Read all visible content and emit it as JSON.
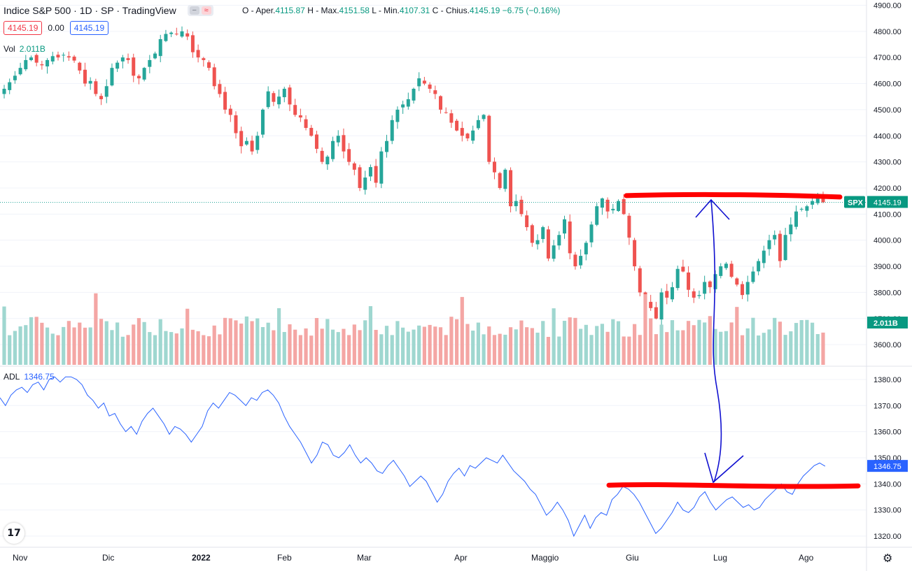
{
  "header": {
    "symbol": "Indice S&P 500 · 1D · SP · TradingView",
    "ohlc_o_label": "O - Aper.",
    "ohlc_o": "4115.87",
    "ohlc_h_label": "H - Max.",
    "ohlc_h": "4151.58",
    "ohlc_l_label": "L - Min.",
    "ohlc_l": "4107.31",
    "ohlc_c_label": "C - Chius.",
    "ohlc_c": "4145.19",
    "ohlc_change": "−6.75 (−0.16%)",
    "bid": "4145.19",
    "spread": "0.00",
    "ask": "4145.19",
    "vol_label": "Vol",
    "vol_value": "2.011B",
    "adl_label": "ADL",
    "adl_value": "1346.75"
  },
  "icons": {
    "logo": "tradingview-logo-icon",
    "settings": "gear-icon",
    "minus": "minus-icon",
    "wave": "wave-icon"
  },
  "colors": {
    "up": "#26a69a",
    "down": "#ef5350",
    "vol_up": "#9fd7d0",
    "vol_down": "#f4a6a4",
    "adl_line": "#2962ff",
    "annotation_red": "#ff0000",
    "annotation_blue": "#1010d0",
    "last_price_tag": "#089981",
    "adl_tag": "#2962ff"
  },
  "chart_data": [
    {
      "type": "candlestick",
      "title": "Indice S&P 500",
      "ylim": [
        3520,
        4920
      ],
      "y_ticks": [
        "4900.00",
        "4800.00",
        "4700.00",
        "4600.00",
        "4500.00",
        "4400.00",
        "4300.00",
        "4200.00",
        "4100.00",
        "4000.00",
        "3900.00",
        "3800.00",
        "3700.00",
        "3600.00"
      ],
      "last_price": 4145.19,
      "last_price_label": "SPX",
      "last_price_text": "4145.19",
      "volume_label": "2.011B",
      "x_labels": [
        "Nov",
        "Dic",
        "2022",
        "Feb",
        "Mar",
        "Apr",
        "Maggio",
        "Giu",
        "Lug",
        "Ago"
      ],
      "close": [
        4580,
        4605,
        4630,
        4660,
        4690,
        4700,
        4680,
        4670,
        4690,
        4705,
        4700,
        4710,
        4700,
        4688,
        4650,
        4600,
        4610,
        4560,
        4540,
        4590,
        4660,
        4680,
        4700,
        4690,
        4630,
        4620,
        4660,
        4690,
        4715,
        4770,
        4790,
        4795,
        4790,
        4800,
        4780,
        4720,
        4700,
        4690,
        4660,
        4590,
        4560,
        4500,
        4480,
        4410,
        4360,
        4380,
        4340,
        4400,
        4500,
        4570,
        4530,
        4550,
        4580,
        4520,
        4480,
        4470,
        4430,
        4400,
        4350,
        4300,
        4320,
        4380,
        4400,
        4340,
        4300,
        4270,
        4200,
        4240,
        4280,
        4220,
        4340,
        4380,
        4460,
        4500,
        4520,
        4540,
        4580,
        4620,
        4600,
        4580,
        4560,
        4500,
        4490,
        4450,
        4420,
        4400,
        4390,
        4420,
        4460,
        4480,
        4300,
        4260,
        4200,
        4270,
        4130,
        4150,
        4100,
        4050,
        3990,
        4000,
        4050,
        3930,
        3980,
        4020,
        4080,
        3950,
        3900,
        3940,
        3990,
        4060,
        4130,
        4160,
        4110,
        4120,
        4150,
        4100,
        4010,
        3900,
        3800,
        3760,
        3740,
        3700,
        3800,
        3780,
        3820,
        3890,
        3880,
        3810,
        3780,
        3790,
        3840,
        3820,
        3870,
        3900,
        3910,
        3860,
        3830,
        3790,
        3840,
        3880,
        3920,
        3960,
        4000,
        4020,
        3920,
        4020,
        4060,
        4110,
        4120,
        4130,
        4150,
        4160,
        4145
      ]
    },
    {
      "type": "line",
      "title": "ADL",
      "ylim": [
        1316,
        1384
      ],
      "y_ticks": [
        "1380.00",
        "1370.00",
        "1360.00",
        "1350.00",
        "1340.00",
        "1330.00",
        "1320.00"
      ],
      "last_value": 1346.75,
      "last_value_text": "1346.75",
      "values": [
        1373,
        1370,
        1374,
        1376,
        1377,
        1375,
        1378,
        1379,
        1376,
        1380,
        1381,
        1379,
        1381,
        1381,
        1380,
        1378,
        1374,
        1372,
        1369,
        1371,
        1366,
        1367,
        1363,
        1360,
        1362,
        1359,
        1364,
        1367,
        1369,
        1366,
        1363,
        1359,
        1362,
        1361,
        1359,
        1356,
        1359,
        1362,
        1368,
        1371,
        1369,
        1372,
        1375,
        1374,
        1372,
        1370,
        1373,
        1372,
        1375,
        1376,
        1374,
        1371,
        1366,
        1362,
        1359,
        1356,
        1352,
        1348,
        1351,
        1356,
        1355,
        1351,
        1350,
        1352,
        1355,
        1351,
        1348,
        1350,
        1348,
        1345,
        1344,
        1347,
        1349,
        1346,
        1343,
        1339,
        1341,
        1343,
        1341,
        1337,
        1333,
        1336,
        1341,
        1344,
        1346,
        1343,
        1347,
        1346,
        1348,
        1350,
        1349,
        1348,
        1351,
        1348,
        1345,
        1343,
        1341,
        1338,
        1336,
        1332,
        1328,
        1330,
        1333,
        1330,
        1326,
        1320,
        1324,
        1328,
        1323,
        1327,
        1329,
        1328,
        1334,
        1336,
        1339,
        1338,
        1336,
        1333,
        1329,
        1325,
        1321,
        1323,
        1326,
        1329,
        1333,
        1330,
        1329,
        1331,
        1335,
        1337,
        1333,
        1330,
        1332,
        1334,
        1335,
        1333,
        1331,
        1332,
        1330,
        1331,
        1334,
        1336,
        1338,
        1340,
        1337,
        1336,
        1340,
        1343,
        1345,
        1347,
        1348,
        1346.75
      ]
    }
  ],
  "annotations": {
    "price_resistance_level": 4168,
    "adl_support_level": 1339.5
  }
}
